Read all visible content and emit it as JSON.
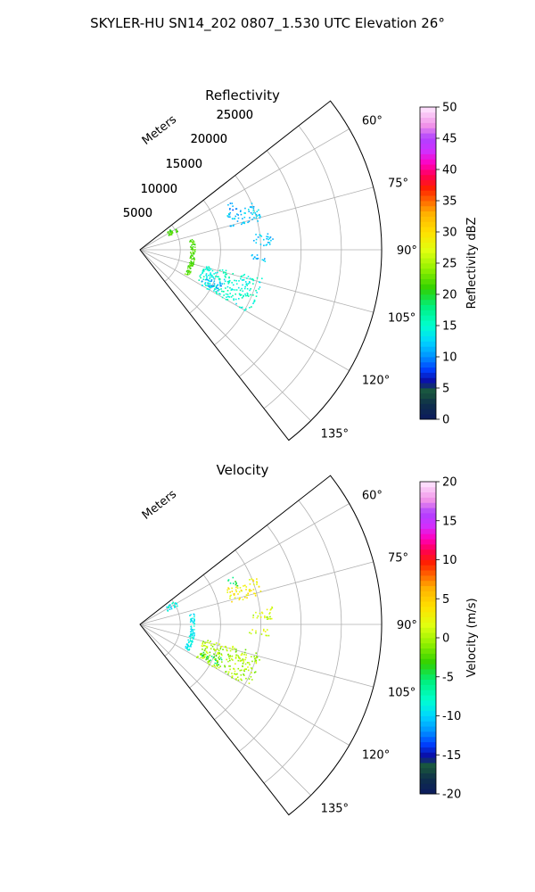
{
  "figure": {
    "title": "SKYLER-HU  SN14_202  0807_1.530 UTC Elevation 26°"
  },
  "chart_data": [
    {
      "type": "scatter",
      "subtype": "polar-sector (PPI)",
      "title": "Reflectivity",
      "range_label": "Meters",
      "range_ticks": [
        "5000",
        "10000",
        "15000",
        "20000",
        "25000"
      ],
      "range_max": 30000,
      "azimuth_range_deg": [
        52,
        142
      ],
      "azimuth_ticks": [
        "60°",
        "75°",
        "90°",
        "105°",
        "120°",
        "135°"
      ],
      "grid": true,
      "colorbar": {
        "label": "Reflectivity dBZ",
        "min": 0,
        "max": 50,
        "ticks": [
          "0",
          "5",
          "10",
          "15",
          "20",
          "25",
          "30",
          "35",
          "40",
          "45",
          "50"
        ]
      },
      "clusters": [
        {
          "az": [
            55,
            63
          ],
          "r": [
            3700,
            5200
          ],
          "value": 22
        },
        {
          "az": [
            67,
            76
          ],
          "r": [
            11500,
            15500
          ],
          "value": 12
        },
        {
          "az": [
            82,
            88
          ],
          "r": [
            14000,
            16500
          ],
          "value": 12
        },
        {
          "az": [
            92,
            95
          ],
          "r": [
            13500,
            16000
          ],
          "value": 12
        },
        {
          "az": [
            103,
            120
          ],
          "r": [
            8000,
            15500
          ],
          "value": 15
        },
        {
          "az": [
            112,
            118
          ],
          "r": [
            8500,
            11000
          ],
          "value": 11
        },
        {
          "az": [
            62,
            68
          ],
          "r": [
            12000,
            13000
          ],
          "value": 10
        }
      ],
      "arcs": [
        {
          "az": [
            78,
            118
          ],
          "r": [
            6200,
            6800
          ],
          "value": 22
        }
      ]
    },
    {
      "type": "scatter",
      "subtype": "polar-sector (PPI)",
      "title": "Velocity",
      "range_label": "Meters",
      "range_ticks": [
        "5000",
        "10000",
        "15000",
        "20000",
        "25000"
      ],
      "range_max": 30000,
      "azimuth_range_deg": [
        52,
        142
      ],
      "azimuth_ticks": [
        "60°",
        "75°",
        "90°",
        "105°",
        "120°",
        "135°"
      ],
      "grid": true,
      "colorbar": {
        "label": "Velocity (m/s)",
        "min": -20,
        "max": 20,
        "ticks": [
          "-20",
          "-15",
          "-10",
          "-5",
          "0",
          "5",
          "10",
          "15",
          "20"
        ]
      },
      "clusters": [
        {
          "az": [
            55,
            63
          ],
          "r": [
            3700,
            5200
          ],
          "value": -9
        },
        {
          "az": [
            67,
            76
          ],
          "r": [
            11500,
            15500
          ],
          "value": 3
        },
        {
          "az": [
            82,
            88
          ],
          "r": [
            14000,
            16500
          ],
          "value": 1
        },
        {
          "az": [
            92,
            95
          ],
          "r": [
            13500,
            16000
          ],
          "value": 1
        },
        {
          "az": [
            103,
            120
          ],
          "r": [
            8000,
            15500
          ],
          "value": 0
        },
        {
          "az": [
            112,
            118
          ],
          "r": [
            8500,
            11000
          ],
          "value": -4
        },
        {
          "az": [
            62,
            68
          ],
          "r": [
            12000,
            13000
          ],
          "value": -5
        }
      ],
      "arcs": [
        {
          "az": [
            78,
            118
          ],
          "r": [
            6200,
            6800
          ],
          "value": -9
        }
      ]
    }
  ]
}
